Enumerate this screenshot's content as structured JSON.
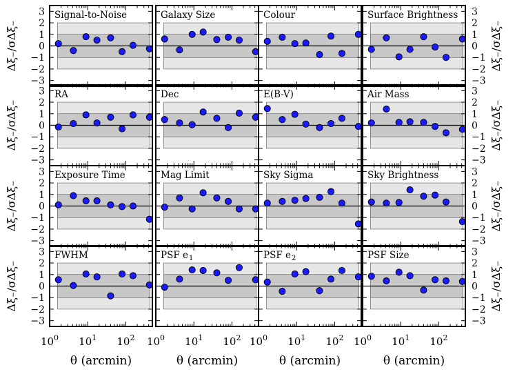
{
  "figure": {
    "ylabel": "Δξ₋/σΔξ₋",
    "xlabel": "θ (arcmin)",
    "colors": {
      "marker_fill": "#1a1aff",
      "marker_edge": "#000000",
      "band_outer": "#e6e6e6",
      "band_inner": "#c8c8c8",
      "axis": "#000000"
    }
  },
  "chart_data": {
    "type": "scatter",
    "xscale": "log",
    "xlim": [
      1,
      500
    ],
    "ylim": [
      -3.5,
      3.5
    ],
    "yticks": [
      "3",
      "2",
      "1",
      "0",
      "−1",
      "−2",
      "−3"
    ],
    "ytick_values": [
      3,
      2,
      1,
      0,
      -1,
      -2,
      -3
    ],
    "xticks": [
      {
        "value": 1,
        "base": "10",
        "exp": "0"
      },
      {
        "value": 10,
        "base": "10",
        "exp": "1"
      },
      {
        "value": 100,
        "base": "10",
        "exp": "2"
      }
    ],
    "bands": {
      "inner": [
        -1,
        1
      ],
      "outer": [
        -2,
        2
      ]
    },
    "shaded_x_range": [
      1.6,
      430
    ],
    "x": [
      1.7,
      4.2,
      9,
      17.5,
      40,
      80,
      155,
      420
    ],
    "panels": [
      {
        "title": "Signal-to-Noise",
        "values": [
          0.2,
          -0.4,
          0.8,
          0.5,
          0.7,
          -0.5,
          0.05,
          -0.25
        ]
      },
      {
        "title": "Galaxy Size",
        "values": [
          0.6,
          -0.35,
          1.0,
          1.2,
          0.55,
          0.75,
          0.5,
          -0.5
        ]
      },
      {
        "title": "Colour",
        "values": [
          0.4,
          0.75,
          0.2,
          0.25,
          -0.75,
          0.85,
          -0.65,
          1.0
        ]
      },
      {
        "title": "Surface Brightness",
        "values": [
          -0.3,
          0.7,
          -0.95,
          -0.3,
          0.8,
          -0.1,
          -1.0,
          0.6
        ]
      },
      {
        "title": "RA",
        "values": [
          -0.15,
          0.15,
          0.9,
          0.2,
          0.7,
          -0.3,
          0.9,
          0.7
        ]
      },
      {
        "title": "Dec",
        "values": [
          0.5,
          0.2,
          0.05,
          1.15,
          0.6,
          -0.2,
          1.05,
          0.7
        ]
      },
      {
        "title": "E(B-V)",
        "values": [
          1.45,
          0.5,
          0.95,
          0.1,
          -0.2,
          0.15,
          0.6,
          -0.1
        ]
      },
      {
        "title": "Air Mass",
        "values": [
          0.2,
          1.4,
          0.25,
          0.3,
          0.25,
          -0.1,
          -0.65,
          -0.35
        ]
      },
      {
        "title": "Exposure Time",
        "values": [
          0.1,
          0.9,
          0.45,
          0.45,
          0.1,
          -0.05,
          0.0,
          -1.15
        ]
      },
      {
        "title": "Mag Limit",
        "values": [
          -0.1,
          0.7,
          -0.25,
          1.15,
          0.7,
          0.4,
          -0.25,
          -0.25
        ]
      },
      {
        "title": "Sky Sigma",
        "values": [
          0.25,
          0.4,
          0.5,
          0.65,
          0.75,
          1.25,
          0.25,
          -1.55
        ]
      },
      {
        "title": "Sky Brightness",
        "values": [
          0.35,
          0.25,
          0.3,
          1.4,
          0.85,
          0.95,
          0.35,
          -1.35
        ]
      },
      {
        "title": "FWHM",
        "values": [
          0.55,
          0.05,
          1.05,
          0.8,
          -0.85,
          1.05,
          0.9,
          0.1
        ]
      },
      {
        "title": "PSF e",
        "subscript": "1",
        "values": [
          -0.1,
          0.6,
          1.4,
          1.35,
          1.15,
          0.5,
          1.6,
          0.55
        ]
      },
      {
        "title": "PSF e",
        "subscript": "2",
        "values": [
          0.35,
          -0.45,
          1.05,
          1.25,
          -0.4,
          0.6,
          1.35,
          0.8
        ]
      },
      {
        "title": "PSF Size",
        "values": [
          0.85,
          0.45,
          1.2,
          0.9,
          -0.35,
          0.55,
          0.45,
          0.4
        ]
      }
    ]
  }
}
